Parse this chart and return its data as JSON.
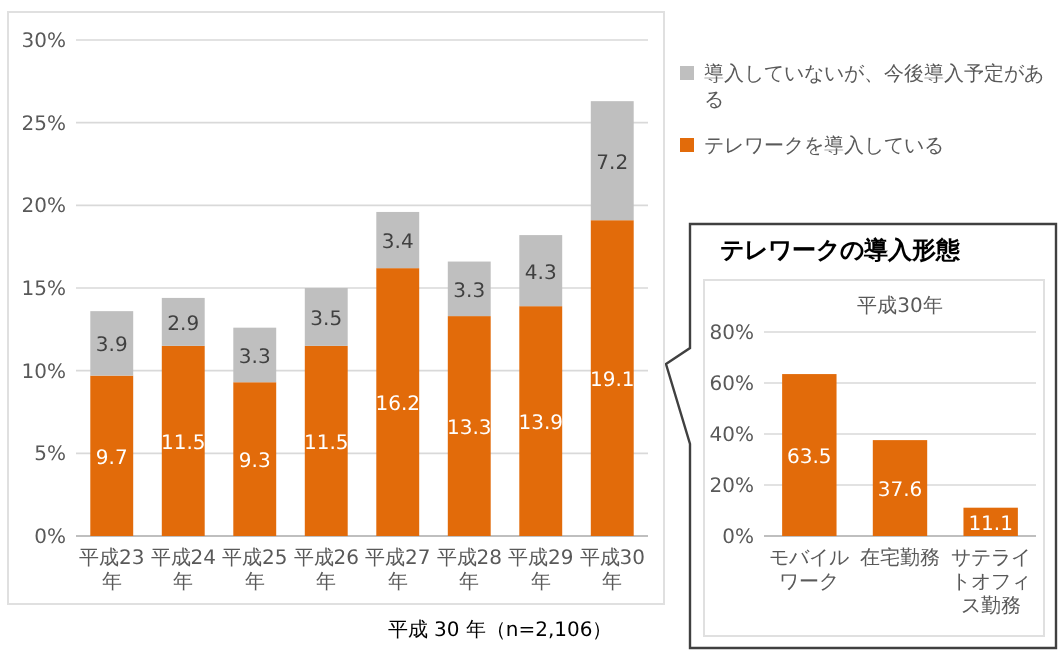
{
  "chart_data": [
    {
      "type": "bar",
      "stacked": true,
      "categories": [
        "平成23年",
        "平成24年",
        "平成25年",
        "平成26年",
        "平成27年",
        "平成28年",
        "平成29年",
        "平成30年"
      ],
      "series": [
        {
          "name": "テレワークを導入している",
          "color": "#e26b0a",
          "values": [
            9.7,
            11.5,
            9.3,
            11.5,
            16.2,
            13.3,
            13.9,
            19.1
          ]
        },
        {
          "name": "導入していないが、今後導入予定がある",
          "color": "#bfbfbf",
          "values": [
            3.9,
            2.9,
            3.3,
            3.5,
            3.4,
            3.3,
            4.3,
            7.2
          ]
        }
      ],
      "ylim": [
        0,
        30
      ],
      "yticks": [
        {
          "value": 0,
          "label": "0%"
        },
        {
          "value": 5,
          "label": "5%"
        },
        {
          "value": 10,
          "label": "10%"
        },
        {
          "value": 15,
          "label": "15%"
        },
        {
          "value": 20,
          "label": "20%"
        },
        {
          "value": 25,
          "label": "25%"
        },
        {
          "value": 30,
          "label": "30%"
        }
      ],
      "grid": "y",
      "legend": "right",
      "data_labels": true,
      "annotations": [
        "平成 30 年（n=2,106）"
      ]
    },
    {
      "type": "bar",
      "title": "テレワークの導入形態",
      "subtitle": "平成30年",
      "categories": [
        "モバイルワーク",
        "在宅勤務",
        "サテライトオフィス勤務"
      ],
      "values": [
        63.5,
        37.6,
        11.1
      ],
      "color": "#e26b0a",
      "ylim": [
        0,
        80
      ],
      "yticks": [
        {
          "value": 0,
          "label": "0%"
        },
        {
          "value": 20,
          "label": "20%"
        },
        {
          "value": 40,
          "label": "40%"
        },
        {
          "value": 60,
          "label": "60%"
        },
        {
          "value": 80,
          "label": "80%"
        }
      ],
      "grid": "y",
      "data_labels": true
    }
  ]
}
